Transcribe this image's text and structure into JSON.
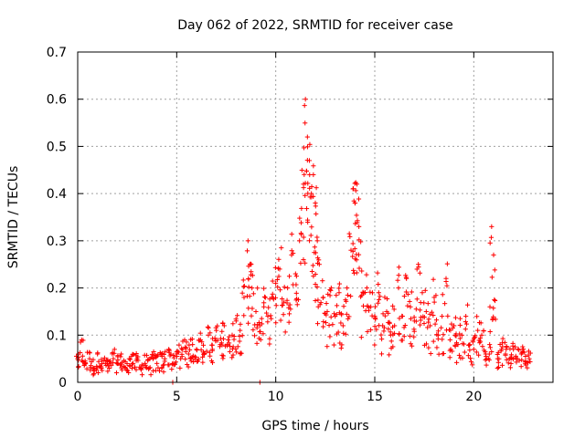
{
  "chart_data": {
    "type": "scatter",
    "title": "Day 062 of 2022, SRMTID for receiver case",
    "xlabel": "GPS time / hours",
    "ylabel": "SRMTID / TECUs",
    "xlim": [
      0,
      24
    ],
    "ylim": [
      0,
      0.7
    ],
    "xticks": [
      0,
      5,
      10,
      15,
      20
    ],
    "xtick_labels": [
      "0",
      "5",
      "10",
      "15",
      "20"
    ],
    "yticks": [
      0,
      0.1,
      0.2,
      0.3,
      0.4,
      0.5,
      0.6,
      0.7
    ],
    "ytick_labels": [
      "0",
      "0.1",
      "0.2",
      "0.3",
      "0.4",
      "0.5",
      "0.6",
      "0.7"
    ],
    "grid": true,
    "marker": "plus",
    "color": "#ff0000",
    "series": [
      {
        "name": "SRMTID",
        "x": [
          0.0,
          0.2,
          0.4,
          0.6,
          0.8,
          1.0,
          1.2,
          1.4,
          1.6,
          1.8,
          2.0,
          2.2,
          2.4,
          2.6,
          2.8,
          3.0,
          3.2,
          3.4,
          3.6,
          3.8,
          4.0,
          4.2,
          4.4,
          4.6,
          4.8,
          5.0,
          5.2,
          5.4,
          5.6,
          5.8,
          6.0,
          6.2,
          6.4,
          6.6,
          6.8,
          7.0,
          7.2,
          7.4,
          7.6,
          7.8,
          8.0,
          8.2,
          8.4,
          8.6,
          8.7,
          8.8,
          9.0,
          9.2,
          9.4,
          9.6,
          9.8,
          10.0,
          10.2,
          10.4,
          10.6,
          10.8,
          11.0,
          11.2,
          11.4,
          11.5,
          11.6,
          11.7,
          11.8,
          11.9,
          12.0,
          12.1,
          12.2,
          12.4,
          12.6,
          12.8,
          13.0,
          13.2,
          13.4,
          13.6,
          13.8,
          13.9,
          14.0,
          14.1,
          14.2,
          14.4,
          14.6,
          14.8,
          15.0,
          15.2,
          15.4,
          15.6,
          15.8,
          16.0,
          16.2,
          16.4,
          16.6,
          16.8,
          17.0,
          17.2,
          17.4,
          17.6,
          17.8,
          18.0,
          18.2,
          18.4,
          18.6,
          18.8,
          19.0,
          19.2,
          19.4,
          19.6,
          19.8,
          20.0,
          20.2,
          20.4,
          20.6,
          20.8,
          20.9,
          21.0,
          21.2,
          21.4,
          21.6,
          21.8,
          22.0,
          22.2,
          22.4,
          22.6,
          22.8,
          4.8,
          9.2
        ],
        "y": [
          0.05,
          0.09,
          0.04,
          0.05,
          0.03,
          0.06,
          0.03,
          0.04,
          0.03,
          0.05,
          0.04,
          0.06,
          0.03,
          0.05,
          0.04,
          0.05,
          0.03,
          0.04,
          0.03,
          0.05,
          0.04,
          0.06,
          0.05,
          0.07,
          0.04,
          0.06,
          0.05,
          0.09,
          0.06,
          0.08,
          0.07,
          0.09,
          0.06,
          0.1,
          0.07,
          0.11,
          0.08,
          0.12,
          0.09,
          0.1,
          0.13,
          0.11,
          0.18,
          0.3,
          0.25,
          0.2,
          0.15,
          0.12,
          0.16,
          0.14,
          0.18,
          0.21,
          0.24,
          0.17,
          0.2,
          0.27,
          0.23,
          0.3,
          0.42,
          0.6,
          0.52,
          0.47,
          0.4,
          0.44,
          0.38,
          0.3,
          0.25,
          0.18,
          0.15,
          0.2,
          0.14,
          0.19,
          0.12,
          0.2,
          0.28,
          0.41,
          0.38,
          0.42,
          0.33,
          0.19,
          0.2,
          0.16,
          0.14,
          0.19,
          0.12,
          0.15,
          0.1,
          0.12,
          0.2,
          0.14,
          0.22,
          0.16,
          0.13,
          0.25,
          0.19,
          0.15,
          0.12,
          0.18,
          0.1,
          0.14,
          0.22,
          0.09,
          0.12,
          0.08,
          0.1,
          0.14,
          0.08,
          0.07,
          0.11,
          0.1,
          0.06,
          0.08,
          0.33,
          0.27,
          0.05,
          0.07,
          0.06,
          0.05,
          0.07,
          0.05,
          0.06,
          0.04,
          0.05,
          0.0,
          0.0
        ],
        "band_low": [
          0.02,
          0.03,
          0.02,
          0.02,
          0.015,
          0.02,
          0.015,
          0.02,
          0.015,
          0.02,
          0.02,
          0.02,
          0.015,
          0.02,
          0.02,
          0.02,
          0.015,
          0.02,
          0.015,
          0.02,
          0.02,
          0.02,
          0.02,
          0.03,
          0.02,
          0.03,
          0.03,
          0.04,
          0.03,
          0.04,
          0.04,
          0.04,
          0.04,
          0.05,
          0.04,
          0.05,
          0.05,
          0.05,
          0.05,
          0.05,
          0.06,
          0.06,
          0.08,
          0.12,
          0.1,
          0.09,
          0.08,
          0.07,
          0.09,
          0.08,
          0.1,
          0.1,
          0.12,
          0.1,
          0.11,
          0.14,
          0.13,
          0.17,
          0.25,
          0.35,
          0.3,
          0.27,
          0.22,
          0.24,
          0.2,
          0.16,
          0.12,
          0.09,
          0.07,
          0.09,
          0.06,
          0.08,
          0.06,
          0.09,
          0.13,
          0.22,
          0.2,
          0.22,
          0.16,
          0.09,
          0.1,
          0.08,
          0.07,
          0.09,
          0.06,
          0.07,
          0.05,
          0.06,
          0.09,
          0.06,
          0.1,
          0.07,
          0.06,
          0.11,
          0.09,
          0.07,
          0.06,
          0.08,
          0.05,
          0.06,
          0.1,
          0.05,
          0.06,
          0.04,
          0.05,
          0.06,
          0.04,
          0.035,
          0.05,
          0.05,
          0.03,
          0.04,
          0.12,
          0.1,
          0.03,
          0.035,
          0.03,
          0.03,
          0.035,
          0.03,
          0.03,
          0.025,
          0.03,
          0.0,
          0.0
        ],
        "band_high": [
          0.06,
          0.1,
          0.07,
          0.07,
          0.05,
          0.07,
          0.05,
          0.06,
          0.05,
          0.07,
          0.06,
          0.07,
          0.05,
          0.06,
          0.06,
          0.07,
          0.05,
          0.06,
          0.05,
          0.07,
          0.06,
          0.07,
          0.07,
          0.09,
          0.06,
          0.08,
          0.08,
          0.11,
          0.08,
          0.1,
          0.09,
          0.11,
          0.09,
          0.12,
          0.1,
          0.13,
          0.11,
          0.14,
          0.12,
          0.13,
          0.16,
          0.14,
          0.22,
          0.32,
          0.28,
          0.25,
          0.2,
          0.16,
          0.2,
          0.18,
          0.22,
          0.26,
          0.3,
          0.22,
          0.26,
          0.32,
          0.29,
          0.37,
          0.5,
          0.63,
          0.55,
          0.52,
          0.47,
          0.5,
          0.44,
          0.36,
          0.3,
          0.23,
          0.2,
          0.25,
          0.19,
          0.24,
          0.17,
          0.25,
          0.34,
          0.43,
          0.42,
          0.43,
          0.38,
          0.24,
          0.24,
          0.21,
          0.19,
          0.24,
          0.17,
          0.2,
          0.14,
          0.17,
          0.25,
          0.19,
          0.27,
          0.21,
          0.18,
          0.26,
          0.24,
          0.2,
          0.17,
          0.23,
          0.14,
          0.19,
          0.26,
          0.13,
          0.16,
          0.12,
          0.14,
          0.18,
          0.12,
          0.1,
          0.14,
          0.13,
          0.09,
          0.11,
          0.33,
          0.3,
          0.08,
          0.1,
          0.09,
          0.08,
          0.09,
          0.08,
          0.08,
          0.07,
          0.07,
          0.0,
          0.0
        ]
      }
    ]
  }
}
